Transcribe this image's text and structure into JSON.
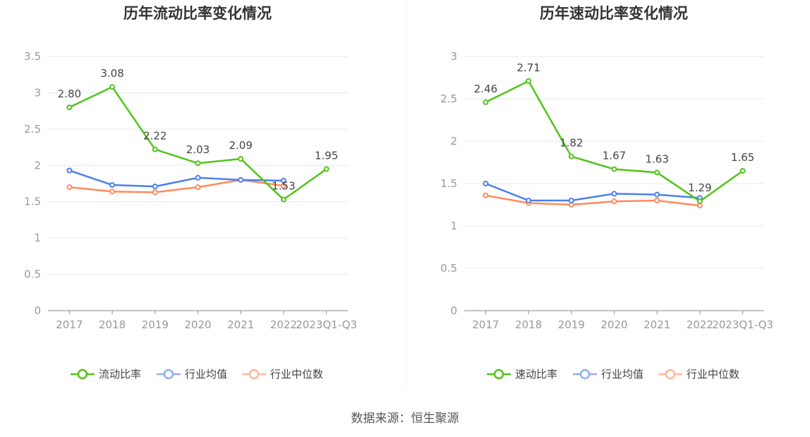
{
  "source": "数据来源：恒生聚源",
  "colors": {
    "main": "#52c41a",
    "avg": "#4a7ff0",
    "median": "#ff8a5c"
  },
  "chart_data": [
    {
      "type": "line",
      "title": "历年流动比率变化情况",
      "categories": [
        "2017",
        "2018",
        "2019",
        "2020",
        "2021",
        "2022",
        "2023Q1-Q3"
      ],
      "ylim": [
        0,
        3.5
      ],
      "yticks": [
        "0",
        "0.5",
        "1",
        "1.5",
        "2",
        "2.5",
        "3",
        "3.5"
      ],
      "legend_position": "bottom",
      "series": [
        {
          "name": "流动比率",
          "values": [
            2.8,
            3.08,
            2.22,
            2.03,
            2.09,
            1.53,
            1.95
          ],
          "labels": [
            "2.80",
            "3.08",
            "2.22",
            "2.03",
            "2.09",
            "1.53",
            "1.95"
          ]
        },
        {
          "name": "行业均值",
          "values": [
            1.93,
            1.73,
            1.71,
            1.83,
            1.8,
            1.79,
            null
          ]
        },
        {
          "name": "行业中位数",
          "values": [
            1.7,
            1.64,
            1.63,
            1.7,
            1.8,
            1.72,
            null
          ]
        }
      ]
    },
    {
      "type": "line",
      "title": "历年速动比率变化情况",
      "categories": [
        "2017",
        "2018",
        "2019",
        "2020",
        "2021",
        "2022",
        "2023Q1-Q3"
      ],
      "ylim": [
        0,
        3
      ],
      "yticks": [
        "0",
        "0.5",
        "1",
        "1.5",
        "2",
        "2.5",
        "3"
      ],
      "legend_position": "bottom",
      "series": [
        {
          "name": "速动比率",
          "values": [
            2.46,
            2.71,
            1.82,
            1.67,
            1.63,
            1.29,
            1.65
          ],
          "labels": [
            "2.46",
            "2.71",
            "1.82",
            "1.67",
            "1.63",
            "1.29",
            "1.65"
          ]
        },
        {
          "name": "行业均值",
          "values": [
            1.5,
            1.3,
            1.3,
            1.38,
            1.37,
            1.33,
            null
          ]
        },
        {
          "name": "行业中位数",
          "values": [
            1.36,
            1.27,
            1.25,
            1.29,
            1.3,
            1.24,
            null
          ]
        }
      ]
    }
  ]
}
